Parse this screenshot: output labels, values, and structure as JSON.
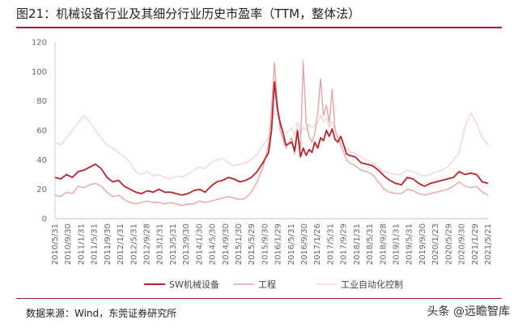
{
  "header": {
    "title": "图21：机械设备行业及其细分行业历史市盈率（TTM，整体法）"
  },
  "footer": {
    "source": "数据来源：Wind，东莞证券研究所",
    "watermark": "头条 @远瞻智库"
  },
  "colors": {
    "accent": "#a6192e",
    "sw": "#b5252b",
    "gongcheng": "#e3a6a8",
    "automation": "#f0d3d6"
  },
  "chart_data": {
    "type": "line",
    "title": "",
    "xlabel": "",
    "ylabel": "",
    "ylim": [
      0,
      120
    ],
    "yticks": [
      "0",
      "20",
      "40",
      "60",
      "80",
      "100",
      "120"
    ],
    "xticks": [
      "2010/5/31",
      "2010/9/30",
      "2011/1/31",
      "2011/5/31",
      "2011/9/30",
      "2012/1/31",
      "2012/5/31",
      "2012/9/28",
      "2013/1/31",
      "2013/5/31",
      "2013/9/30",
      "2014/1/30",
      "2014/5/30",
      "2014/9/30",
      "2015/1/30",
      "2015/5/29",
      "2015/9/30",
      "2016/1/29",
      "2016/5/31",
      "2016/9/30",
      "2017/1/26",
      "2017/5/31",
      "2017/9/29",
      "2018/1/31",
      "2018/5/31",
      "2018/9/28",
      "2019/1/31",
      "2019/5/31",
      "2019/9/30",
      "2020/1/23",
      "2020/5/29",
      "2020/9/30",
      "2021/1/29",
      "2021/5/21"
    ],
    "grid": false,
    "legend_position": "bottom",
    "x_index_max": 132,
    "series": [
      {
        "name": "SW机械设备",
        "color": "#b5252b",
        "points": [
          [
            0,
            28
          ],
          [
            2,
            27
          ],
          [
            4,
            30
          ],
          [
            6,
            28
          ],
          [
            8,
            32
          ],
          [
            10,
            33
          ],
          [
            12,
            35
          ],
          [
            14,
            37
          ],
          [
            16,
            34
          ],
          [
            18,
            28
          ],
          [
            20,
            25
          ],
          [
            22,
            26
          ],
          [
            24,
            22
          ],
          [
            26,
            20
          ],
          [
            28,
            18
          ],
          [
            30,
            17
          ],
          [
            32,
            19
          ],
          [
            34,
            18
          ],
          [
            36,
            20
          ],
          [
            38,
            18
          ],
          [
            40,
            18
          ],
          [
            42,
            17
          ],
          [
            44,
            16
          ],
          [
            46,
            17
          ],
          [
            48,
            19
          ],
          [
            50,
            20
          ],
          [
            52,
            18
          ],
          [
            54,
            22
          ],
          [
            56,
            25
          ],
          [
            58,
            26
          ],
          [
            60,
            28
          ],
          [
            62,
            27
          ],
          [
            64,
            25
          ],
          [
            66,
            26
          ],
          [
            68,
            28
          ],
          [
            70,
            32
          ],
          [
            72,
            38
          ],
          [
            74,
            45
          ],
          [
            75,
            60
          ],
          [
            76,
            93
          ],
          [
            77,
            75
          ],
          [
            78,
            65
          ],
          [
            79,
            58
          ],
          [
            80,
            50
          ],
          [
            82,
            52
          ],
          [
            83,
            46
          ],
          [
            84,
            60
          ],
          [
            85,
            42
          ],
          [
            86,
            48
          ],
          [
            87,
            43
          ],
          [
            88,
            47
          ],
          [
            89,
            45
          ],
          [
            90,
            52
          ],
          [
            91,
            48
          ],
          [
            92,
            55
          ],
          [
            93,
            53
          ],
          [
            94,
            60
          ],
          [
            95,
            56
          ],
          [
            96,
            61
          ],
          [
            97,
            54
          ],
          [
            98,
            52
          ],
          [
            99,
            56
          ],
          [
            100,
            50
          ],
          [
            101,
            44
          ],
          [
            102,
            43
          ],
          [
            104,
            42
          ],
          [
            106,
            38
          ],
          [
            108,
            37
          ],
          [
            110,
            36
          ],
          [
            112,
            33
          ],
          [
            114,
            29
          ],
          [
            116,
            26
          ],
          [
            118,
            24
          ],
          [
            120,
            23
          ],
          [
            122,
            28
          ],
          [
            124,
            27
          ],
          [
            126,
            24
          ],
          [
            128,
            22
          ],
          [
            130,
            24
          ],
          [
            132,
            25
          ],
          [
            134,
            26
          ],
          [
            136,
            27
          ],
          [
            138,
            28
          ],
          [
            140,
            32
          ],
          [
            142,
            30
          ],
          [
            144,
            31
          ],
          [
            146,
            30
          ],
          [
            148,
            25
          ],
          [
            150,
            24
          ]
        ]
      },
      {
        "name": "工程",
        "color": "#e3a6a8",
        "points": [
          [
            0,
            16
          ],
          [
            2,
            15
          ],
          [
            4,
            18
          ],
          [
            6,
            17
          ],
          [
            8,
            22
          ],
          [
            10,
            21
          ],
          [
            12,
            23
          ],
          [
            14,
            24
          ],
          [
            16,
            22
          ],
          [
            18,
            18
          ],
          [
            20,
            15
          ],
          [
            22,
            16
          ],
          [
            24,
            13
          ],
          [
            26,
            11
          ],
          [
            28,
            10
          ],
          [
            30,
            11
          ],
          [
            32,
            12
          ],
          [
            34,
            11
          ],
          [
            36,
            11
          ],
          [
            38,
            10
          ],
          [
            40,
            11
          ],
          [
            42,
            10
          ],
          [
            44,
            9
          ],
          [
            46,
            10
          ],
          [
            48,
            10
          ],
          [
            50,
            12
          ],
          [
            52,
            11
          ],
          [
            54,
            12
          ],
          [
            56,
            13
          ],
          [
            58,
            14
          ],
          [
            60,
            15
          ],
          [
            62,
            14
          ],
          [
            64,
            13
          ],
          [
            66,
            14
          ],
          [
            68,
            18
          ],
          [
            70,
            25
          ],
          [
            72,
            35
          ],
          [
            74,
            50
          ],
          [
            75,
            75
          ],
          [
            76,
            106
          ],
          [
            77,
            80
          ],
          [
            78,
            60
          ],
          [
            79,
            54
          ],
          [
            80,
            48
          ],
          [
            82,
            55
          ],
          [
            83,
            44
          ],
          [
            84,
            58
          ],
          [
            85,
            48
          ],
          [
            86,
            107
          ],
          [
            87,
            65
          ],
          [
            88,
            56
          ],
          [
            89,
            52
          ],
          [
            90,
            58
          ],
          [
            91,
            72
          ],
          [
            92,
            95
          ],
          [
            93,
            70
          ],
          [
            94,
            77
          ],
          [
            95,
            65
          ],
          [
            96,
            88
          ],
          [
            97,
            60
          ],
          [
            98,
            55
          ],
          [
            99,
            50
          ],
          [
            100,
            45
          ],
          [
            101,
            40
          ],
          [
            102,
            38
          ],
          [
            104,
            36
          ],
          [
            106,
            33
          ],
          [
            108,
            32
          ],
          [
            110,
            30
          ],
          [
            112,
            25
          ],
          [
            114,
            20
          ],
          [
            116,
            18
          ],
          [
            118,
            17
          ],
          [
            120,
            17
          ],
          [
            122,
            20
          ],
          [
            124,
            19
          ],
          [
            126,
            17
          ],
          [
            128,
            16
          ],
          [
            130,
            17
          ],
          [
            132,
            18
          ],
          [
            134,
            19
          ],
          [
            136,
            20
          ],
          [
            138,
            22
          ],
          [
            140,
            25
          ],
          [
            142,
            22
          ],
          [
            144,
            21
          ],
          [
            146,
            22
          ],
          [
            148,
            18
          ],
          [
            150,
            16
          ]
        ]
      },
      {
        "name": "工业自动化控制",
        "color": "#f0d3d6",
        "points": [
          [
            0,
            52
          ],
          [
            2,
            50
          ],
          [
            4,
            55
          ],
          [
            6,
            60
          ],
          [
            8,
            65
          ],
          [
            10,
            70
          ],
          [
            12,
            66
          ],
          [
            14,
            60
          ],
          [
            16,
            55
          ],
          [
            18,
            50
          ],
          [
            20,
            48
          ],
          [
            22,
            45
          ],
          [
            24,
            42
          ],
          [
            26,
            38
          ],
          [
            28,
            32
          ],
          [
            30,
            30
          ],
          [
            32,
            32
          ],
          [
            34,
            29
          ],
          [
            36,
            30
          ],
          [
            38,
            28
          ],
          [
            40,
            27
          ],
          [
            42,
            29
          ],
          [
            44,
            28
          ],
          [
            46,
            30
          ],
          [
            48,
            33
          ],
          [
            50,
            35
          ],
          [
            52,
            34
          ],
          [
            54,
            38
          ],
          [
            56,
            40
          ],
          [
            58,
            41
          ],
          [
            60,
            38
          ],
          [
            62,
            36
          ],
          [
            64,
            37
          ],
          [
            66,
            38
          ],
          [
            68,
            40
          ],
          [
            70,
            44
          ],
          [
            72,
            50
          ],
          [
            74,
            55
          ],
          [
            75,
            65
          ],
          [
            76,
            72
          ],
          [
            77,
            70
          ],
          [
            78,
            65
          ],
          [
            79,
            60
          ],
          [
            80,
            58
          ],
          [
            82,
            62
          ],
          [
            83,
            56
          ],
          [
            84,
            66
          ],
          [
            85,
            58
          ],
          [
            86,
            62
          ],
          [
            87,
            60
          ],
          [
            88,
            64
          ],
          [
            89,
            62
          ],
          [
            90,
            63
          ],
          [
            91,
            65
          ],
          [
            92,
            70
          ],
          [
            93,
            66
          ],
          [
            94,
            68
          ],
          [
            95,
            62
          ],
          [
            96,
            66
          ],
          [
            97,
            60
          ],
          [
            98,
            55
          ],
          [
            99,
            52
          ],
          [
            100,
            50
          ],
          [
            101,
            48
          ],
          [
            102,
            46
          ],
          [
            104,
            44
          ],
          [
            106,
            42
          ],
          [
            108,
            40
          ],
          [
            110,
            38
          ],
          [
            112,
            35
          ],
          [
            114,
            32
          ],
          [
            116,
            31
          ],
          [
            118,
            30
          ],
          [
            120,
            30
          ],
          [
            122,
            33
          ],
          [
            124,
            32
          ],
          [
            126,
            30
          ],
          [
            128,
            29
          ],
          [
            130,
            30
          ],
          [
            132,
            32
          ],
          [
            134,
            33
          ],
          [
            136,
            35
          ],
          [
            138,
            40
          ],
          [
            140,
            45
          ],
          [
            142,
            62
          ],
          [
            144,
            72
          ],
          [
            146,
            65
          ],
          [
            148,
            55
          ],
          [
            150,
            50
          ]
        ]
      }
    ]
  }
}
